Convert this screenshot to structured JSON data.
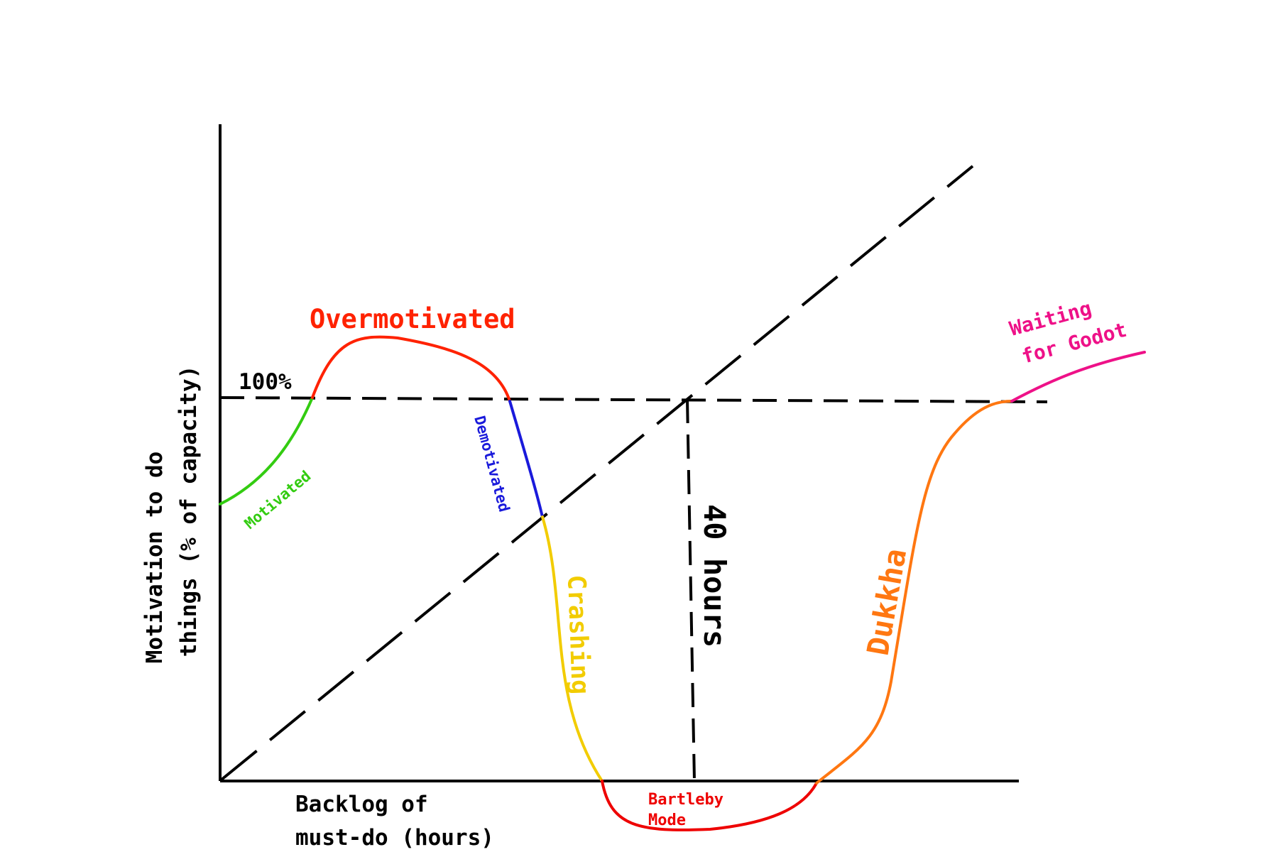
{
  "chart_data": {
    "type": "line",
    "title": "",
    "ylabel_line1": "Motivation to do",
    "ylabel_line2": "things (% of capacity)",
    "xlabel_line1": "Backlog of",
    "xlabel_line2": "must-do (hours)",
    "reference": {
      "y_label": "100%",
      "x_label": "40 hours"
    },
    "phases": [
      {
        "name": "Motivated",
        "color": "#33cc11"
      },
      {
        "name": "Overmotivated",
        "color": "#ff2200"
      },
      {
        "name": "Demotivated",
        "color": "#1a1adb"
      },
      {
        "name": "Crashing",
        "color": "#f2cc00"
      },
      {
        "name": "Bartleby Mode",
        "label_line1": "Bartleby",
        "label_line2": "Mode",
        "color": "#ee0000"
      },
      {
        "name": "Dukkha",
        "color": "#ff7711"
      },
      {
        "name": "Waiting for Godot",
        "label_line1": "Waiting",
        "label_line2": "for Godot",
        "color": "#ee1188"
      }
    ],
    "colors": {
      "axes": "#000000",
      "guides": "#000000"
    }
  }
}
